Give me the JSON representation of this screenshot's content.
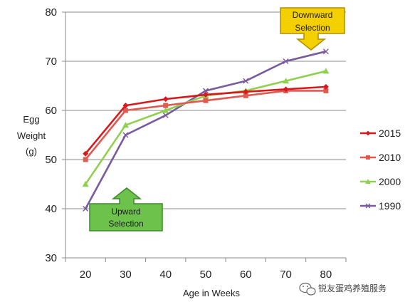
{
  "chart_data": {
    "type": "line",
    "x": [
      20,
      30,
      40,
      50,
      60,
      70,
      80
    ],
    "xlabel": "Age in Weeks",
    "ylabel": [
      "Egg",
      "Weight",
      "(g)"
    ],
    "xlim": [
      15,
      85
    ],
    "ylim": [
      30,
      80
    ],
    "xticks": [
      20,
      30,
      40,
      50,
      60,
      70,
      80
    ],
    "yticks": [
      30,
      40,
      50,
      60,
      70,
      80
    ],
    "grid": "horizontal",
    "legend_position": "right",
    "series": [
      {
        "name": "2015",
        "color": "#d7191c",
        "marker": "diamond",
        "values": [
          51.2,
          61.0,
          62.3,
          63.2,
          63.8,
          64.3,
          64.8
        ]
      },
      {
        "name": "2010",
        "color": "#e05a52",
        "marker": "square",
        "values": [
          50.0,
          60.0,
          61.0,
          62.0,
          63.0,
          64.0,
          64.0
        ]
      },
      {
        "name": "2000",
        "color": "#8fd14f",
        "marker": "triangle",
        "values": [
          45.0,
          57.0,
          60.0,
          63.0,
          64.0,
          66.0,
          68.0
        ]
      },
      {
        "name": "1990",
        "color": "#7a5a9e",
        "marker": "x",
        "values": [
          40.0,
          55.0,
          59.0,
          64.0,
          66.0,
          70.0,
          72.0
        ]
      }
    ],
    "annotations": [
      {
        "lines": [
          "Downward",
          "Selection"
        ],
        "fill": "#f5d000",
        "stroke": "#b08e00",
        "arrow": "down"
      },
      {
        "lines": [
          "Upward",
          "Selection"
        ],
        "fill": "#6cc24a",
        "stroke": "#3a8a2a",
        "arrow": "up"
      }
    ]
  },
  "watermark": {
    "text": "锐友蛋鸡养殖服务",
    "icon": "wechat-icon"
  }
}
